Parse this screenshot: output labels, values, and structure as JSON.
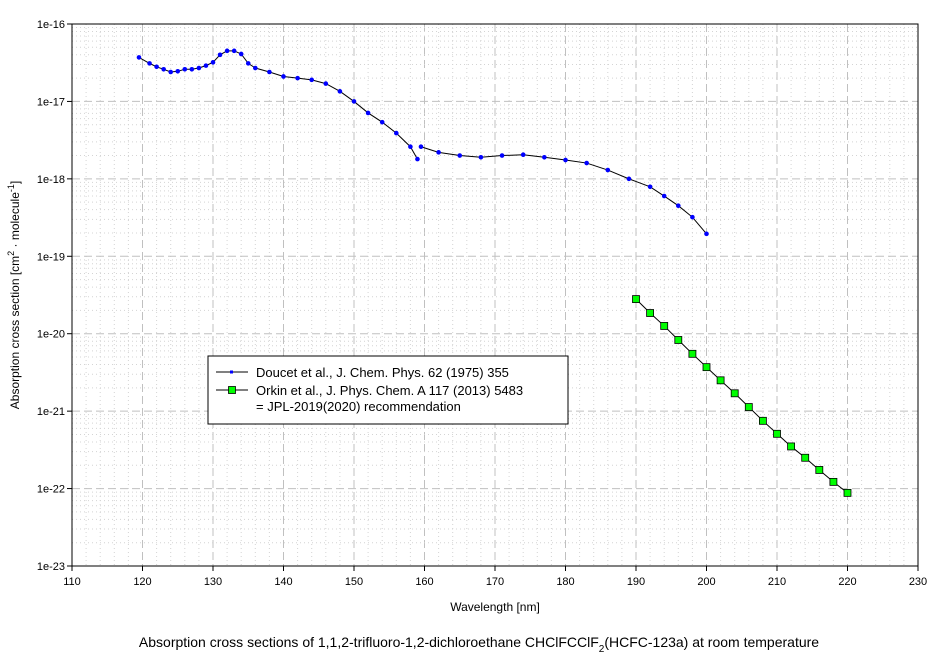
{
  "chart_data": {
    "type": "line",
    "title_parts": {
      "main": "Absorption cross sections of 1,1,2-trifluoro-1,2-dichloroethane CHClFCClF",
      "sub": "2",
      "tail": "(HCFC-123a) at room temperature"
    },
    "xlabel": "Wavelength [nm]",
    "ylabel_parts": {
      "a": "Absorption cross section [cm",
      "sup1": "2",
      "b": " · molecule",
      "sup2": "-1",
      "c": "]"
    },
    "xlim": [
      110,
      230
    ],
    "ylim": [
      1e-23,
      1e-16
    ],
    "yscale": "log",
    "grid": true,
    "x_ticks": [
      "110",
      "120",
      "130",
      "140",
      "150",
      "160",
      "170",
      "180",
      "190",
      "200",
      "210",
      "220",
      "230"
    ],
    "y_ticks": [
      "1e-16",
      "1e-17",
      "1e-18",
      "1e-19",
      "1e-20",
      "1e-21",
      "1e-22",
      "1e-23"
    ],
    "legend_position": "center-left",
    "series": [
      {
        "name": "Doucet et al., J. Chem. Phys. 62 (1975) 355",
        "color": "#0000ff",
        "marker": "dot",
        "segments": [
          {
            "x": [
              119.5,
              121,
              122,
              123,
              124,
              125,
              126,
              127,
              128,
              129,
              130,
              131,
              132,
              133,
              134,
              135,
              136,
              138,
              140,
              142,
              144,
              146,
              148,
              150,
              152,
              154,
              156,
              158,
              159
            ],
            "y": [
              3.7e-17,
              3.1e-17,
              2.8e-17,
              2.6e-17,
              2.4e-17,
              2.45e-17,
              2.6e-17,
              2.6e-17,
              2.7e-17,
              2.9e-17,
              3.2e-17,
              4e-17,
              4.5e-17,
              4.5e-17,
              4.1e-17,
              3.1e-17,
              2.7e-17,
              2.4e-17,
              2.1e-17,
              2e-17,
              1.9e-17,
              1.7e-17,
              1.35e-17,
              1e-17,
              7.1e-18,
              5.4e-18,
              3.9e-18,
              2.6e-18,
              1.8e-18
            ]
          },
          {
            "x": [
              159.5,
              162,
              165,
              168,
              171,
              174,
              177,
              180,
              183,
              186,
              189,
              192,
              194,
              196,
              198,
              200
            ],
            "y": [
              2.6e-18,
              2.2e-18,
              2e-18,
              1.9e-18,
              2e-18,
              2.05e-18,
              1.9e-18,
              1.75e-18,
              1.6e-18,
              1.3e-18,
              1e-18,
              7.9e-19,
              6e-19,
              4.5e-19,
              3.2e-19,
              1.95e-19
            ]
          }
        ]
      },
      {
        "name": "Orkin et al., J. Phys. Chem. A 117 (2013) 5483",
        "name_line2": "= JPL-2019(2020) recommendation",
        "color": "#00ff00",
        "marker": "square",
        "segments": [
          {
            "x": [
              190,
              192,
              194,
              196,
              198,
              200,
              202,
              204,
              206,
              208,
              210,
              212,
              214,
              216,
              218,
              220
            ],
            "y": [
              2.8e-20,
              1.85e-20,
              1.26e-20,
              8.3e-21,
              5.5e-21,
              3.7e-21,
              2.5e-21,
              1.7e-21,
              1.13e-21,
              7.5e-22,
              5.1e-22,
              3.5e-22,
              2.5e-22,
              1.74e-22,
              1.22e-22,
              8.8e-23
            ]
          }
        ]
      }
    ]
  }
}
